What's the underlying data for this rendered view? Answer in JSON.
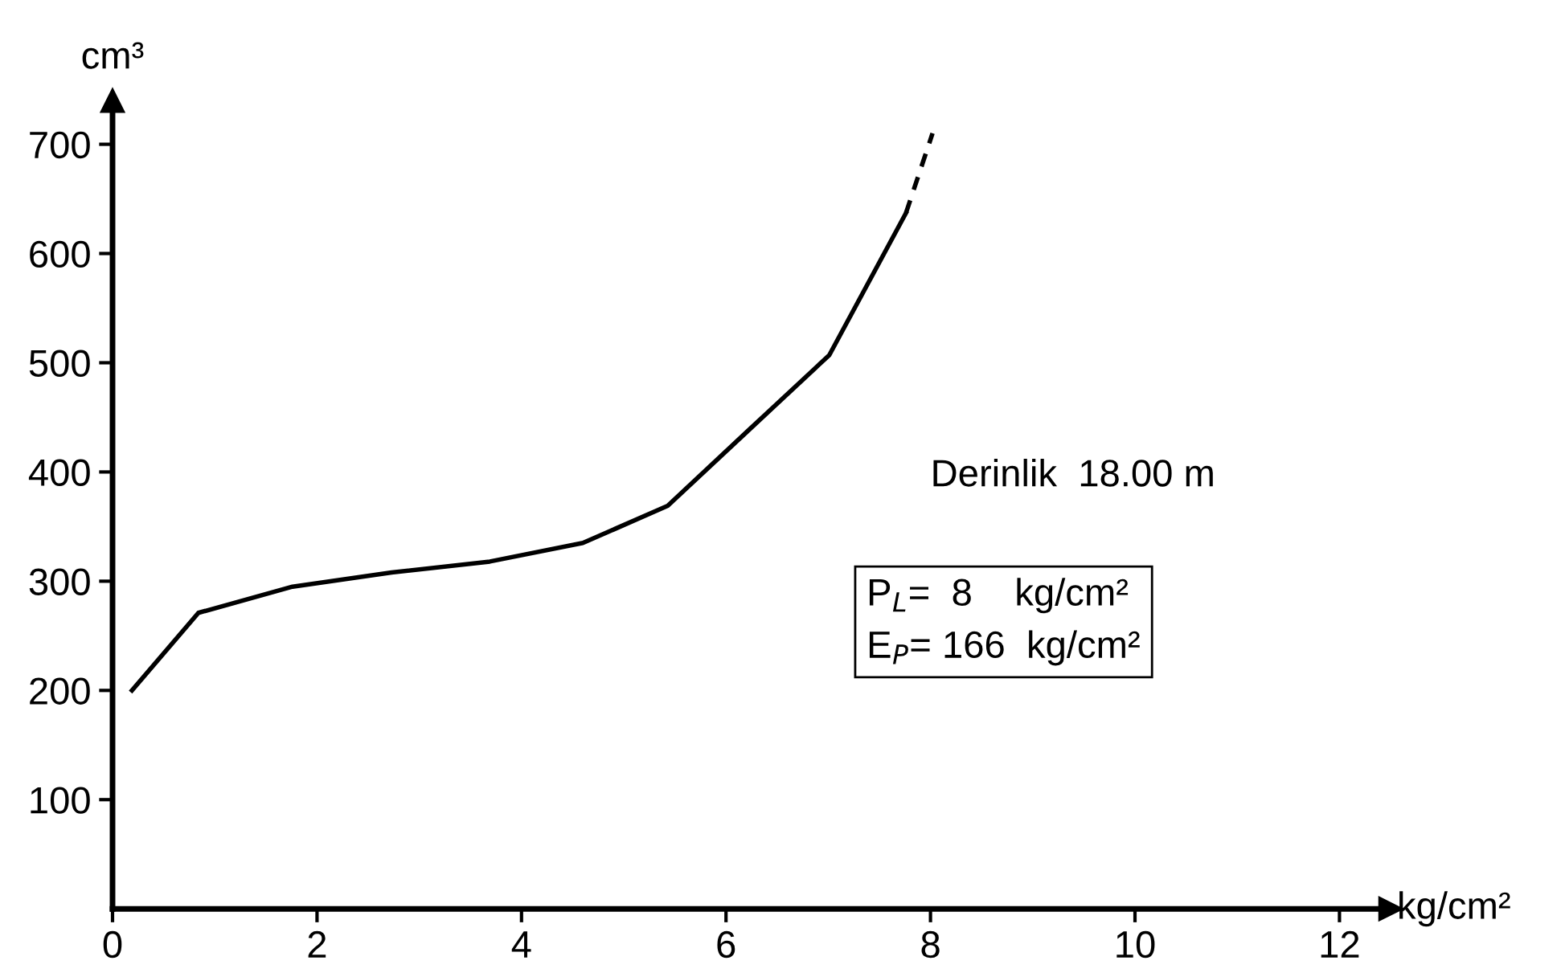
{
  "chart_data": {
    "type": "line",
    "xlabel": "kg/cm²",
    "ylabel": "cm³",
    "xlim": [
      0,
      12.5
    ],
    "ylim": [
      0,
      740
    ],
    "xticks": [
      0,
      2,
      4,
      6,
      8,
      10,
      12
    ],
    "yticks": [
      100,
      200,
      300,
      400,
      500,
      600,
      700
    ],
    "grid": false,
    "legend": false,
    "series": [
      {
        "color": "#000000",
        "line_style": "solid",
        "x": [
          0.19,
          0.84,
          1.76,
          2.73,
          3.69,
          4.6,
          5.43,
          6.23,
          7.01,
          7.76
        ],
        "values": [
          200,
          271,
          295,
          308,
          318,
          335,
          369,
          439,
          507,
          637
        ]
      },
      {
        "color": "#000000",
        "line_style": "dashed",
        "x": [
          7.76,
          8.02
        ],
        "values": [
          637,
          710
        ]
      }
    ],
    "annotations": [
      "Derinlik  18.00 m",
      "P$_{L}$=  8    kg/cm²",
      "E$_{P}$= 166  kg/cm²"
    ]
  }
}
